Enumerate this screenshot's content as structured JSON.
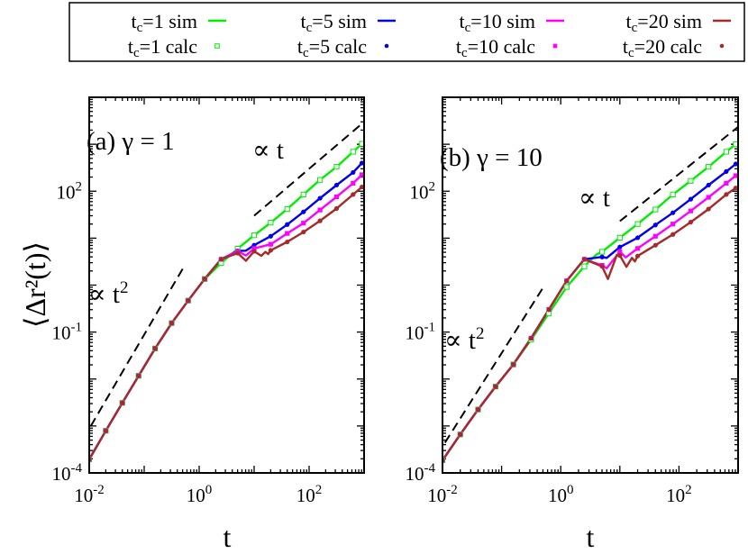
{
  "legend": {
    "entries": [
      {
        "prefix": "t",
        "sub": "c",
        "suffix": "=1  sim",
        "series": "tc1",
        "kind": "sim"
      },
      {
        "prefix": "t",
        "sub": "c",
        "suffix": "=5 sim",
        "series": "tc5",
        "kind": "sim"
      },
      {
        "prefix": "t",
        "sub": "c",
        "suffix": "=10 sim",
        "series": "tc10",
        "kind": "sim"
      },
      {
        "prefix": "t",
        "sub": "c",
        "suffix": "=20 sim",
        "series": "tc20",
        "kind": "sim"
      },
      {
        "prefix": "t",
        "sub": "c",
        "suffix": "=1  calc",
        "series": "tc1",
        "kind": "calc"
      },
      {
        "prefix": "t",
        "sub": "c",
        "suffix": "=5  calc",
        "series": "tc5",
        "kind": "calc"
      },
      {
        "prefix": "t",
        "sub": "c",
        "suffix": "=10 calc",
        "series": "tc10",
        "kind": "calc"
      },
      {
        "prefix": "t",
        "sub": "c",
        "suffix": "=20 calc",
        "series": "tc20",
        "kind": "calc"
      }
    ]
  },
  "colors": {
    "tc1": "#00ee00",
    "tc5": "#0000ee",
    "tc10": "#ff00ff",
    "tc20": "#a52a2a",
    "guide": "#000000"
  },
  "markers": {
    "tc1": "open-square",
    "tc5": "filled-circle",
    "tc10": "filled-square",
    "tc20": "filled-circle"
  },
  "chart_data": [
    {
      "type": "line",
      "panel_label": "(a) γ = 1",
      "xlabel": "t",
      "ylabel": "⟨Δr²(t)⟩",
      "xscale": "log",
      "yscale": "log",
      "xlim": [
        0.01,
        1000
      ],
      "ylim": [
        0.0001,
        10000
      ],
      "xticks": [
        {
          "base": "10",
          "exp": "-2",
          "value": 0.01
        },
        {
          "base": "10",
          "exp": "0",
          "value": 1
        },
        {
          "base": "10",
          "exp": "2",
          "value": 100
        }
      ],
      "yticks": [
        {
          "base": "10",
          "exp": "-4",
          "value": 0.0001
        },
        {
          "base": "10",
          "exp": "-1",
          "value": 0.1
        },
        {
          "base": "10",
          "exp": "2",
          "value": 100
        }
      ],
      "grid": false,
      "calc_t": [
        0.01,
        0.02,
        0.04,
        0.079,
        0.158,
        0.316,
        0.63,
        1.26,
        2.51,
        5.01,
        10,
        20,
        40,
        79,
        158,
        316,
        631,
        912
      ],
      "series": [
        {
          "key": "tc1",
          "calc_y": [
            0.000195,
            0.00079,
            0.0031,
            0.0117,
            0.0447,
            0.155,
            0.468,
            1.35,
            2.95,
            5.96,
            11.5,
            21.4,
            41.7,
            85.1,
            174,
            331,
            692,
            1023
          ],
          "sim_extra": []
        },
        {
          "key": "tc5",
          "calc_y": [
            0.000195,
            0.00079,
            0.0031,
            0.0117,
            0.0447,
            0.155,
            0.468,
            1.35,
            3.55,
            5.37,
            7.08,
            11.0,
            19.5,
            36.3,
            70.8,
            135,
            251,
            398
          ],
          "sim_extra": [
            [
              7.1,
              5.4
            ]
          ]
        },
        {
          "key": "tc10",
          "calc_y": [
            0.000195,
            0.00079,
            0.0031,
            0.0117,
            0.0447,
            0.155,
            0.468,
            1.35,
            3.55,
            5.25,
            6.03,
            7.41,
            12.6,
            20.9,
            39.8,
            75.9,
            148,
            224
          ],
          "sim_extra": [
            [
              7.1,
              4.27
            ]
          ]
        },
        {
          "key": "tc20",
          "calc_y": [
            0.000195,
            0.00079,
            0.0031,
            0.0117,
            0.0447,
            0.155,
            0.468,
            1.35,
            3.55,
            4.79,
            5.25,
            5.5,
            8.32,
            13.5,
            23.4,
            42.7,
            85.1,
            123
          ],
          "sim_extra": [
            [
              7.1,
              3.3
            ],
            [
              13.5,
              4.2
            ],
            [
              16,
              5.1
            ],
            [
              18,
              4.6
            ]
          ]
        }
      ],
      "guides": [
        {
          "label_prefix": "∝ t",
          "label_exp": "2",
          "from": [
            0.0107,
            0.001
          ],
          "to": [
            0.51,
            2.3
          ]
        },
        {
          "label_prefix": "∝ t",
          "label_exp": "",
          "from": [
            10,
            30
          ],
          "to": [
            1000,
            3000
          ]
        }
      ]
    },
    {
      "type": "line",
      "panel_label": "(b)  γ = 10",
      "xlabel": "t",
      "xscale": "log",
      "yscale": "log",
      "xlim": [
        0.01,
        1000
      ],
      "ylim": [
        0.0001,
        10000
      ],
      "xticks": [
        {
          "base": "10",
          "exp": "-2",
          "value": 0.01
        },
        {
          "base": "10",
          "exp": "0",
          "value": 1
        },
        {
          "base": "10",
          "exp": "2",
          "value": 100
        }
      ],
      "yticks": [
        {
          "base": "10",
          "exp": "-4",
          "value": 0.0001
        },
        {
          "base": "10",
          "exp": "-1",
          "value": 0.1
        },
        {
          "base": "10",
          "exp": "2",
          "value": 100
        }
      ],
      "grid": false,
      "calc_t": [
        0.01,
        0.02,
        0.04,
        0.079,
        0.158,
        0.316,
        0.63,
        1.26,
        2.51,
        5.01,
        10,
        20,
        40,
        79,
        158,
        316,
        631,
        912
      ],
      "series": [
        {
          "key": "tc1",
          "calc_y": [
            0.000186,
            0.00066,
            0.00224,
            0.0069,
            0.0204,
            0.069,
            0.251,
            0.912,
            2.51,
            5.13,
            10.2,
            20.0,
            40.7,
            85.1,
            166,
            331,
            692,
            1000
          ],
          "sim_extra": [
            [
              4,
              4.47
            ]
          ]
        },
        {
          "key": "tc5",
          "calc_y": [
            0.000186,
            0.00066,
            0.00224,
            0.0069,
            0.0204,
            0.074,
            0.302,
            1.23,
            3.55,
            3.98,
            6.46,
            10.2,
            19.1,
            34.7,
            67.6,
            135,
            263,
            380
          ],
          "sim_extra": [
            [
              6,
              3.8
            ]
          ]
        },
        {
          "key": "tc10",
          "calc_y": [
            0.000186,
            0.00066,
            0.00224,
            0.0069,
            0.0204,
            0.074,
            0.302,
            1.23,
            3.55,
            2.63,
            5.13,
            6.03,
            11.0,
            20.0,
            38.0,
            74.1,
            148,
            214
          ],
          "sim_extra": [
            [
              6,
              2.29
            ],
            [
              12.6,
              3.9
            ]
          ]
        },
        {
          "key": "tc20",
          "calc_y": [
            0.000186,
            0.00066,
            0.00224,
            0.0069,
            0.0204,
            0.074,
            0.302,
            1.23,
            3.55,
            2.51,
            4.27,
            4.17,
            7.08,
            12.0,
            21.9,
            41.7,
            85.1,
            117
          ],
          "sim_extra": [
            [
              6.3,
              1.35
            ],
            [
              8.9,
              4.4
            ],
            [
              12.9,
              2.45
            ],
            [
              16,
              3.8
            ],
            [
              18,
              3.2
            ]
          ]
        }
      ],
      "guides": [
        {
          "label_prefix": "∝ t",
          "label_exp": "2",
          "from": [
            0.011,
            0.00044
          ],
          "to": [
            0.51,
            0.91
          ]
        },
        {
          "label_prefix": "∝ t",
          "label_exp": "",
          "from": [
            10,
            23
          ],
          "to": [
            1000,
            2340
          ]
        }
      ]
    }
  ]
}
